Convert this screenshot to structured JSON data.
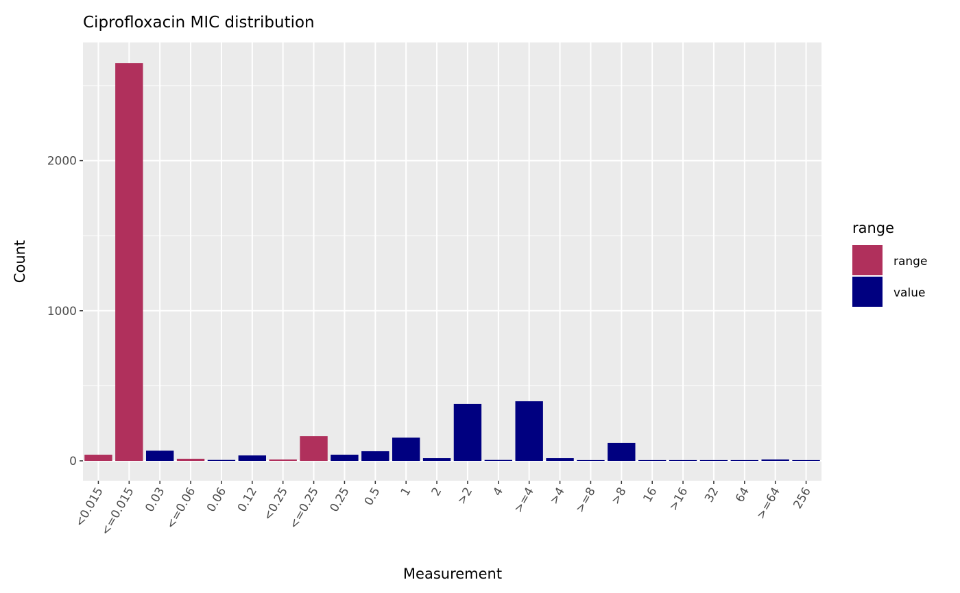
{
  "chart_data": {
    "type": "bar",
    "title": "Ciprofloxacin MIC distribution",
    "xlabel": "Measurement",
    "ylabel": "Count",
    "ylim": [
      -120,
      2770
    ],
    "yticks": [
      0,
      1000,
      2000
    ],
    "grid": true,
    "categories": [
      "<0.015",
      "<=0.015",
      "0.03",
      "<=0.06",
      "0.06",
      "0.12",
      "<0.25",
      "<=0.25",
      "0.25",
      "0.5",
      "1",
      "2",
      ">2",
      "4",
      ">=4",
      ">4",
      ">=8",
      ">8",
      "16",
      ">16",
      "32",
      "64",
      ">=64",
      "256"
    ],
    "values": [
      41,
      2650,
      68,
      14,
      6,
      36,
      9,
      164,
      41,
      64,
      155,
      18,
      379,
      6,
      397,
      18,
      5,
      119,
      5,
      5,
      5,
      5,
      9,
      5
    ],
    "groups": [
      "range",
      "range",
      "value",
      "range",
      "value",
      "value",
      "range",
      "range",
      "value",
      "value",
      "value",
      "value",
      "value",
      "value",
      "value",
      "value",
      "value",
      "value",
      "value",
      "value",
      "value",
      "value",
      "value",
      "value"
    ],
    "legend": {
      "title": "range",
      "placement": "right",
      "entries": [
        {
          "label": "range",
          "color": "#B0305C"
        },
        {
          "label": "value",
          "color": "#000080"
        }
      ]
    }
  }
}
